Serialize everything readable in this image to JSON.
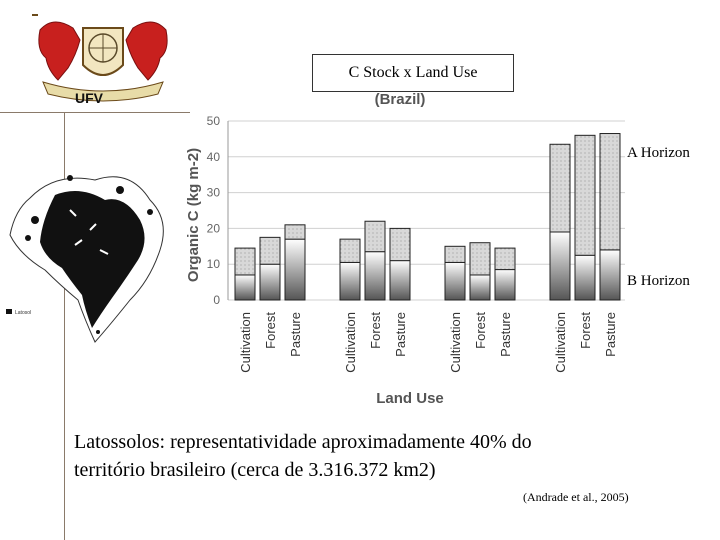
{
  "header": {
    "logo_text": "UFV",
    "title": "C Stock x Land Use"
  },
  "caption": {
    "line1": "Latossolos: representatividade aproximadamente 40% do",
    "line2": "território brasileiro (cerca de 3.316.372 km2)",
    "source": "(Andrade et al., 2005)"
  },
  "map": {
    "legend_label": "Latosol"
  },
  "chart_data": {
    "type": "bar",
    "title": "(Brazil)",
    "xlabel": "Land Use",
    "ylabel": "Organic C (kg m-2)",
    "ylim": [
      0,
      50
    ],
    "yticks": [
      0,
      10,
      20,
      30,
      40,
      50
    ],
    "categories": [
      "Cultivation",
      "Forest",
      "Pasture",
      "Cultivation",
      "Forest",
      "Pasture",
      "Cultivation",
      "Forest",
      "Pasture",
      "Cultivation",
      "Forest",
      "Pasture"
    ],
    "stacked": true,
    "series": [
      {
        "name": "B Horizon",
        "values": [
          7,
          10,
          17,
          10.5,
          13.5,
          11,
          10.5,
          7,
          8.5,
          19,
          12.5,
          14
        ]
      },
      {
        "name": "A Horizon",
        "values": [
          7.5,
          7.5,
          4,
          6.5,
          8.5,
          9,
          4.5,
          9,
          6,
          24.5,
          33.5,
          32.5
        ]
      }
    ],
    "grid": true,
    "colors": {
      "a_horizon": "#d8d8d8",
      "b_horizon": "#9a9a9a",
      "outline": "#222222"
    }
  }
}
